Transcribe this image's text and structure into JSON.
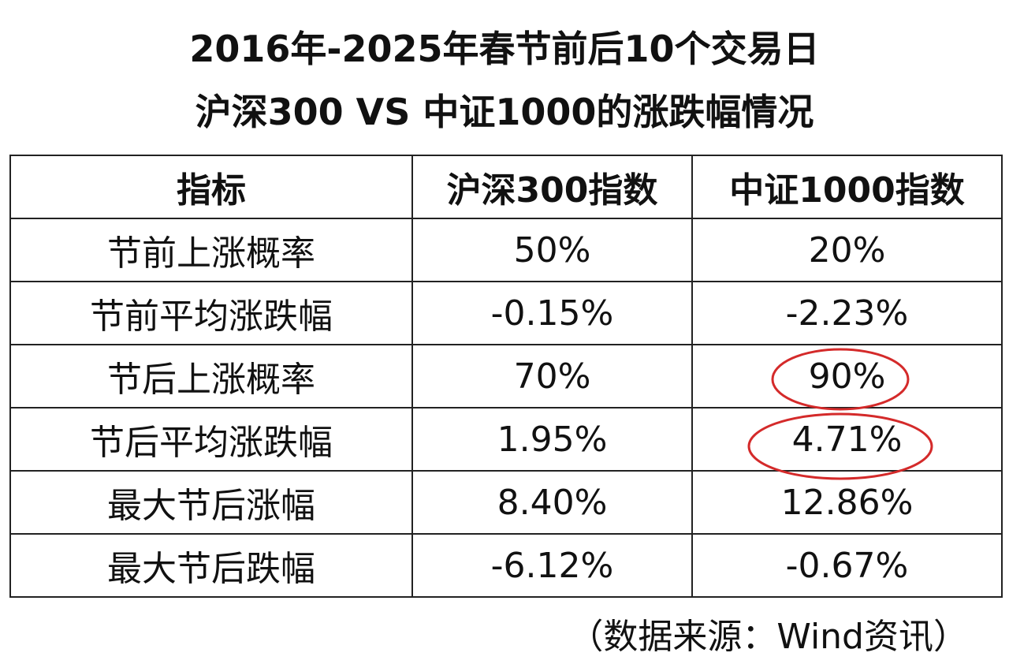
{
  "header": {
    "title_lines": [
      "2016年-2025年春节前后10个交易日",
      "沪深300 VS 中证1000的涨跌幅情况"
    ]
  },
  "table": {
    "columns": [
      "指标",
      "沪深300指数",
      "中证1000指数"
    ],
    "rows": [
      [
        "节前上涨概率",
        "50%",
        "20%"
      ],
      [
        "节前平均涨跌幅",
        "-0.15%",
        "-2.23%"
      ],
      [
        "节后上涨概率",
        "70%",
        "90%"
      ],
      [
        "节后平均涨跌幅",
        "1.95%",
        "4.71%"
      ],
      [
        "最大节后涨幅",
        "8.40%",
        "12.86%"
      ],
      [
        "最大节后跌幅",
        "-6.12%",
        "-0.67%"
      ]
    ]
  },
  "footer": {
    "source": "（数据来源：Wind资讯）"
  }
}
